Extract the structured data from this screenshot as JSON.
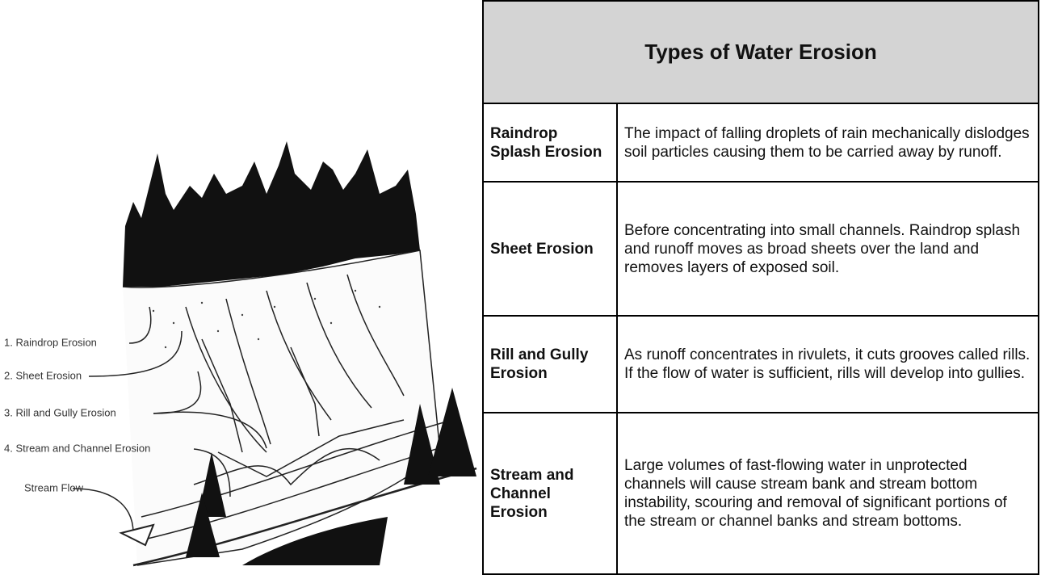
{
  "diagram": {
    "labels": [
      "1. Raindrop Erosion",
      "2. Sheet Erosion",
      "3. Rill and Gully Erosion",
      "4. Stream and Channel Erosion",
      "Stream Flow"
    ]
  },
  "table": {
    "title": "Types of Water Erosion",
    "rows": [
      [
        "Raindrop Splash Erosion",
        "The impact of falling droplets of rain mechanically dislodges soil particles causing them to be carried away by runoff."
      ],
      [
        "Sheet Erosion",
        "Before concentrating into small channels. Raindrop splash and runoff moves as broad sheets over the land and removes layers of exposed soil."
      ],
      [
        "Rill and Gully Erosion",
        "As runoff concentrates in rivulets, it cuts grooves called rills.  If the flow of water is sufficient, rills will develop into gullies."
      ],
      [
        "Stream and Channel Erosion",
        "Large volumes of fast-flowing water in unprotected channels will cause stream bank and stream bottom instability, scouring and removal of significant portions of the stream or channel banks and stream bottoms."
      ]
    ]
  }
}
